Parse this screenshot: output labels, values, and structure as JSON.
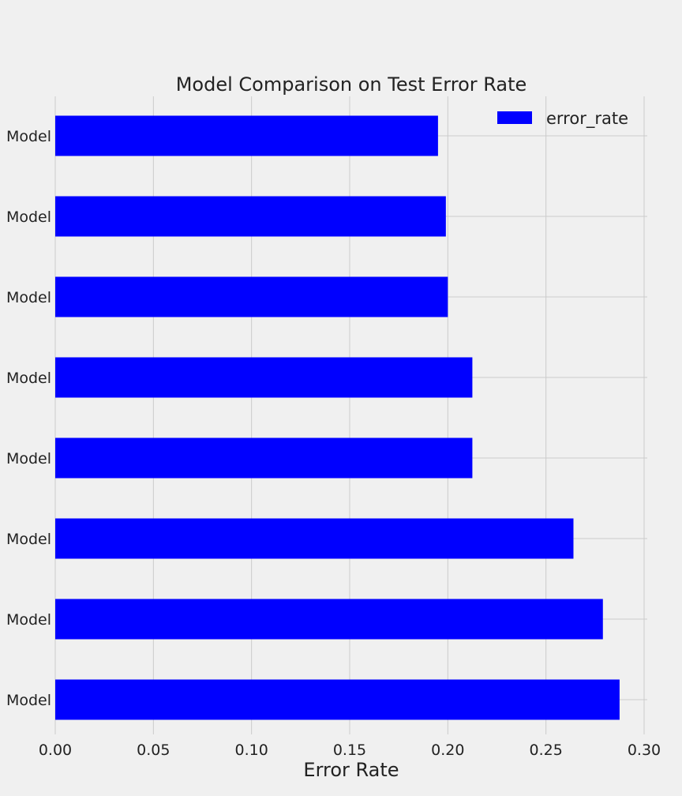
{
  "chart_data": {
    "type": "bar",
    "orientation": "horizontal",
    "title": "Model Comparison on Test Error Rate",
    "xlabel": "Error Rate",
    "ylabel": "",
    "categories": [
      "Model",
      "Model",
      "Model",
      "Model",
      "Model",
      "Model",
      "Model",
      "Model"
    ],
    "series": [
      {
        "name": "error_rate",
        "values": [
          0.195,
          0.199,
          0.2,
          0.2125,
          0.2125,
          0.264,
          0.279,
          0.2875
        ],
        "color": "#0000ff"
      }
    ],
    "xlim": [
      0,
      0.3
    ],
    "xticks": [
      "0.00",
      "0.05",
      "0.10",
      "0.15",
      "0.20",
      "0.25",
      "0.30"
    ],
    "grid": true,
    "legend": "top-right",
    "colors": {
      "background": "#f0f0f0",
      "bar": "#0000ff",
      "grid": "#cbcbcb",
      "text": "#222222"
    }
  }
}
